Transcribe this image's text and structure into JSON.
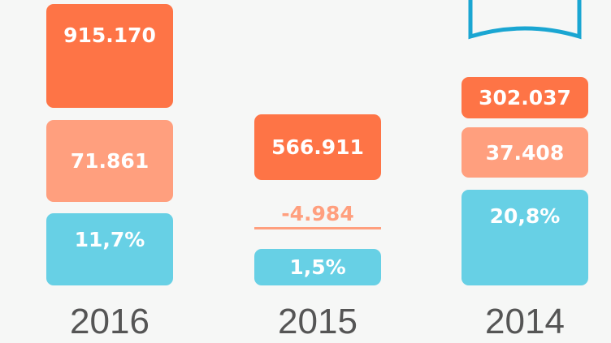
{
  "columns": [
    {
      "year": "2016",
      "items": [
        "915.170",
        "71.861",
        "11,7%"
      ]
    },
    {
      "year": "2015",
      "items": [
        "566.911",
        "-4.984",
        "1,5%"
      ]
    },
    {
      "year": "2014",
      "items": [
        "302.037",
        "37.408",
        "20,8%"
      ]
    }
  ]
}
